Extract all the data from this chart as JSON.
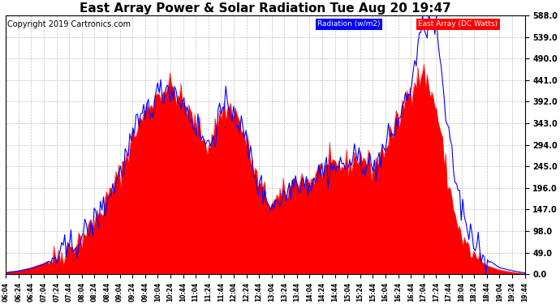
{
  "title": "East Array Power & Solar Radiation Tue Aug 20 19:47",
  "copyright": "Copyright 2019 Cartronics.com",
  "legend_radiation": "Radiation (w/m2)",
  "legend_east": "East Array (DC Watts)",
  "ylabel_right_max": 588.0,
  "ylabel_right_ticks": [
    0.0,
    49.0,
    98.0,
    147.0,
    196.0,
    245.0,
    294.0,
    343.0,
    392.0,
    441.0,
    490.0,
    539.0,
    588.0
  ],
  "background_color": "#ffffff",
  "plot_bg_color": "#ffffff",
  "radiation_color": "#0000ff",
  "east_array_color": "#ff0000",
  "grid_color": "#b0b0b0",
  "title_color": "#000000",
  "title_fontsize": 11,
  "copyright_fontsize": 7,
  "figwidth": 6.9,
  "figheight": 3.75,
  "dpi": 100
}
